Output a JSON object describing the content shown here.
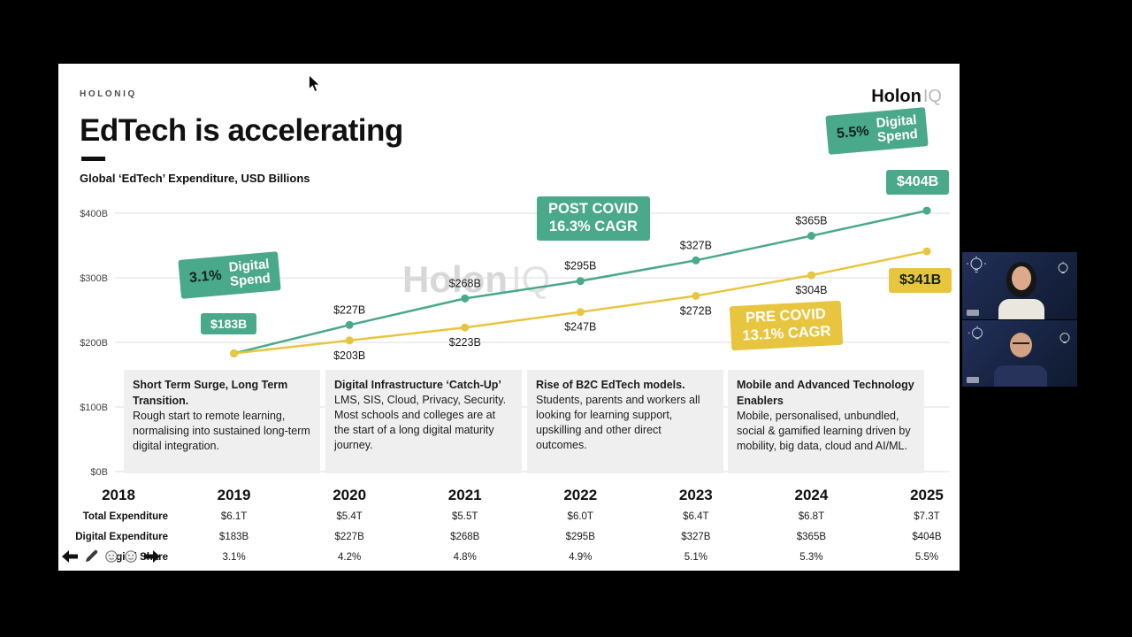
{
  "colors": {
    "green": "#4AA88B",
    "yellow": "#E8C53E",
    "note_bg": "#EFEFEF",
    "slide_bg": "#FFFFFF",
    "page_bg": "#000000"
  },
  "slide": {
    "brand": "HOLONIQ",
    "logo": {
      "bold": "Holon",
      "light": "IQ"
    },
    "title": "EdTech is accelerating",
    "subtitle": "Global ‘EdTech’ Expenditure, USD Billions",
    "watermark": {
      "bold": "Holon",
      "light": "IQ"
    },
    "badges": {
      "spend_right": {
        "pct": "5.5%",
        "line1": "Digital",
        "line2": "Spend"
      },
      "green_end": "$404B",
      "yellow_end": "$341B",
      "post_covid": {
        "line1": "POST COVID",
        "line2": "16.3% CAGR"
      },
      "pre_covid": {
        "line1": "PRE COVID",
        "line2": "13.1% CAGR"
      },
      "spend_left": {
        "pct": "3.1%",
        "line1": "Digital",
        "line2": "Spend"
      },
      "green_start": "$183B"
    },
    "notes": [
      {
        "title": "Short Term Surge, Long Term Transition.",
        "body": "Rough start to remote learning, normalising into sustained long-term digital integration."
      },
      {
        "title": "Digital Infrastructure ‘Catch-Up’",
        "body": "LMS, SIS, Cloud, Privacy, Security. Most schools and colleges are at the start of a long digital maturity journey."
      },
      {
        "title": "Rise of B2C EdTech models.",
        "body": "Students, parents and workers all looking for learning support, upskilling and other direct outcomes."
      },
      {
        "title": "Mobile and Advanced Technology Enablers",
        "body": "Mobile, personalised, unbundled, social & gamified learning driven by mobility, big data, cloud and AI/ML."
      }
    ],
    "table": {
      "years": [
        "2018",
        "2019",
        "2020",
        "2021",
        "2022",
        "2023",
        "2024",
        "2025"
      ],
      "rows": [
        {
          "label": "Total Expenditure",
          "values": [
            "",
            "$6.1T",
            "$5.4T",
            "$5.5T",
            "$6.0T",
            "$6.4T",
            "$6.8T",
            "$7.3T"
          ]
        },
        {
          "label": "Digital Expenditure",
          "values": [
            "",
            "$183B",
            "$227B",
            "$268B",
            "$295B",
            "$327B",
            "$365B",
            "$404B"
          ]
        },
        {
          "label": "Digital Share",
          "values": [
            "",
            "3.1%",
            "4.2%",
            "4.8%",
            "4.9%",
            "5.1%",
            "5.3%",
            "5.5%"
          ]
        }
      ]
    },
    "toolbar_icons": [
      "previous-arrow",
      "pencil",
      "circle-face",
      "circle-face",
      "next-arrow"
    ]
  },
  "video_panel": {
    "participant_count": 2
  },
  "chart_data": {
    "type": "line",
    "title": "Global ‘EdTech’ Expenditure, USD Billions",
    "x": [
      2019,
      2020,
      2021,
      2022,
      2023,
      2024,
      2025
    ],
    "series": [
      {
        "name": "Post COVID Digital Expenditure (16.3% CAGR)",
        "color": "#4AA88B",
        "values": [
          183,
          227,
          268,
          295,
          327,
          365,
          404
        ]
      },
      {
        "name": "Pre COVID Digital Expenditure (13.1% CAGR)",
        "color": "#E8C53E",
        "values": [
          183,
          203,
          223,
          247,
          272,
          304,
          341
        ]
      }
    ],
    "ytick_labels": [
      "$400B",
      "$300B",
      "$200B",
      "$100B",
      "$0B"
    ],
    "ytick_values": [
      400,
      300,
      200,
      100,
      0
    ],
    "ylim": [
      0,
      430
    ],
    "grid": true,
    "legend": "none",
    "point_label_format": "$<value>B",
    "annotations": [
      "5.5% Digital Spend",
      "$404B",
      "$341B",
      "POST COVID 16.3% CAGR",
      "PRE COVID 13.1% CAGR",
      "3.1% Digital Spend",
      "$183B"
    ]
  }
}
